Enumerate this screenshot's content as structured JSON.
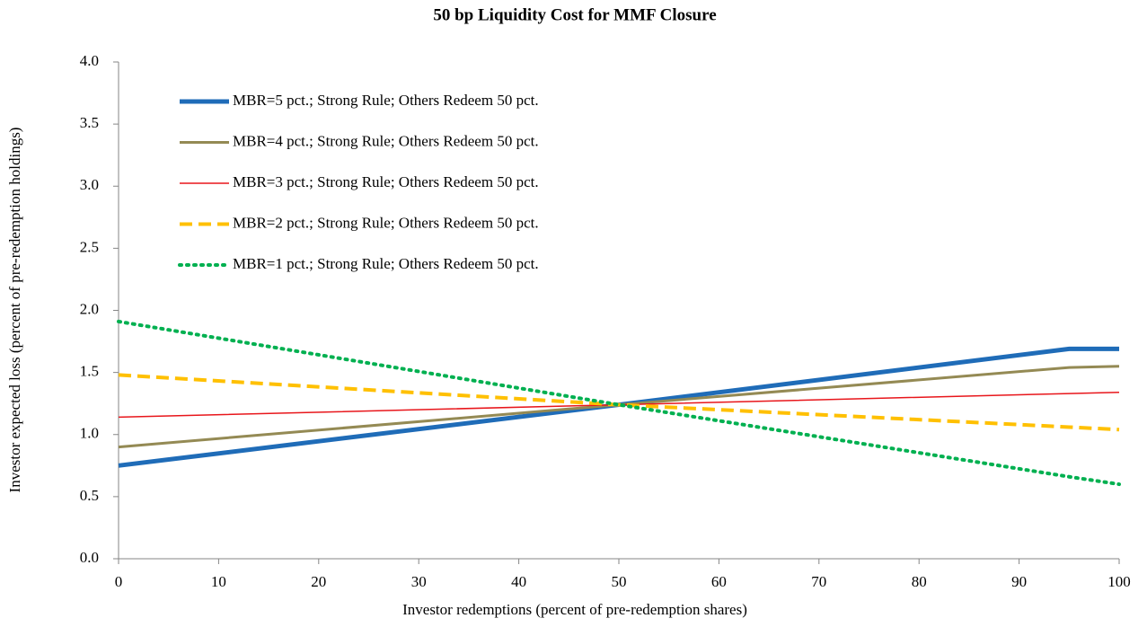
{
  "chart_data": {
    "type": "line",
    "title": "50 bp Liquidity Cost for MMF Closure",
    "x_label": "Investor redemptions (percent of pre-redemption shares)",
    "y_label": "Investor expected loss (percent of pre-redemption holdings)",
    "x": [
      0,
      50,
      95,
      100
    ],
    "series": [
      {
        "name": "MBR=5 pct.; Strong Rule; Others Redeem 50 pct.",
        "color": "#1f6cb8",
        "width": 5,
        "dash": "solid",
        "values": [
          0.75,
          1.24,
          1.69,
          1.69
        ]
      },
      {
        "name": "MBR=4 pct.; Strong Rule; Others Redeem 50 pct.",
        "color": "#948a54",
        "width": 3,
        "dash": "solid",
        "values": [
          0.9,
          1.24,
          1.54,
          1.55
        ]
      },
      {
        "name": "MBR=3 pct.; Strong Rule; Others Redeem 50 pct.",
        "color": "#e8161b",
        "width": 1.5,
        "dash": "solid",
        "values": [
          1.14,
          1.24,
          1.33,
          1.34
        ]
      },
      {
        "name": "MBR=2 pct.; Strong Rule; Others Redeem 50 pct.",
        "color": "#ffc000",
        "width": 4,
        "dash": "dashed",
        "values": [
          1.48,
          1.24,
          1.06,
          1.04
        ]
      },
      {
        "name": "MBR=1 pct.; Strong Rule; Others Redeem 50 pct.",
        "color": "#00b050",
        "width": 4,
        "dash": "dotted",
        "values": [
          1.91,
          1.24,
          0.66,
          0.6
        ]
      }
    ],
    "xlim": [
      0,
      100
    ],
    "xticks": [
      0,
      10,
      20,
      30,
      40,
      50,
      60,
      70,
      80,
      90,
      100
    ],
    "ylim": [
      0,
      4
    ],
    "yticks": [
      {
        "value": 0,
        "label": "0.0"
      },
      {
        "value": 0.5,
        "label": "0.5"
      },
      {
        "value": 1,
        "label": "1.0"
      },
      {
        "value": 1.5,
        "label": "1.5"
      },
      {
        "value": 2,
        "label": "2.0"
      },
      {
        "value": 2.5,
        "label": "2.5"
      },
      {
        "value": 3,
        "label": "3.0"
      },
      {
        "value": 3.5,
        "label": "3.5"
      },
      {
        "value": 4,
        "label": "4.0"
      }
    ],
    "legend": "upper left",
    "grid": false
  }
}
